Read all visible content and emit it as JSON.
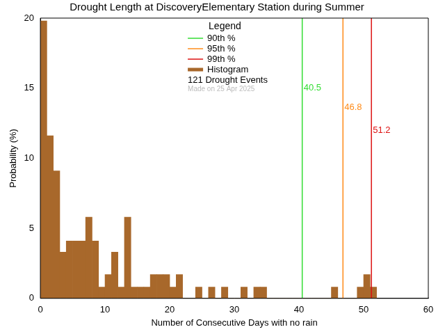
{
  "chart_data": {
    "type": "histogram",
    "title": "Drought Length at DiscoveryElementary Station during Summer",
    "x_label": "Number of Consecutive Days with no rain",
    "y_label": "Probability (%)",
    "bins": [
      0,
      1,
      2,
      3,
      4,
      5,
      6,
      7,
      8,
      9,
      10,
      11,
      12,
      13,
      14,
      15,
      16,
      17,
      18,
      19,
      20,
      21,
      22,
      23,
      24,
      25,
      26,
      27,
      28,
      29,
      30,
      31,
      32,
      33,
      34,
      35,
      36,
      37,
      38,
      39,
      40,
      41,
      42,
      43,
      44,
      45,
      46,
      47,
      48,
      49,
      50,
      51,
      52
    ],
    "values": [
      19.8,
      11.6,
      9.1,
      3.3,
      4.1,
      4.1,
      4.1,
      5.8,
      4.1,
      0.8,
      1.7,
      3.3,
      0.8,
      5.8,
      0.8,
      0.8,
      0.8,
      1.7,
      1.7,
      1.7,
      0.8,
      1.7,
      0,
      0,
      0.8,
      0,
      0.8,
      0,
      0.8,
      0,
      0,
      0.8,
      0,
      0.8,
      0.8,
      0,
      0,
      0,
      0,
      0,
      0,
      0,
      0,
      0,
      0,
      0.8,
      0,
      0,
      0,
      0.8,
      1.7,
      0.8
    ],
    "histogram_name": "Histogram",
    "color": "#a8682b",
    "percentiles": [
      {
        "name": "90th %",
        "value": 40.5,
        "color": "#33dd33"
      },
      {
        "name": "95th %",
        "value": 46.8,
        "color": "#ff8c1a"
      },
      {
        "name": "99th %",
        "value": 51.2,
        "color": "#dd1111"
      }
    ],
    "legend": "upper center",
    "legend_title": "Legend",
    "annotations": [
      "121 Drought Events",
      "Made on 25 Apr 2025"
    ],
    "xlim": [
      0,
      60
    ],
    "xticks": [
      0,
      10,
      20,
      30,
      40,
      50,
      60
    ],
    "ylim": [
      0,
      20
    ],
    "yticks": [
      0,
      5,
      10,
      15,
      20
    ],
    "grid": false
  }
}
